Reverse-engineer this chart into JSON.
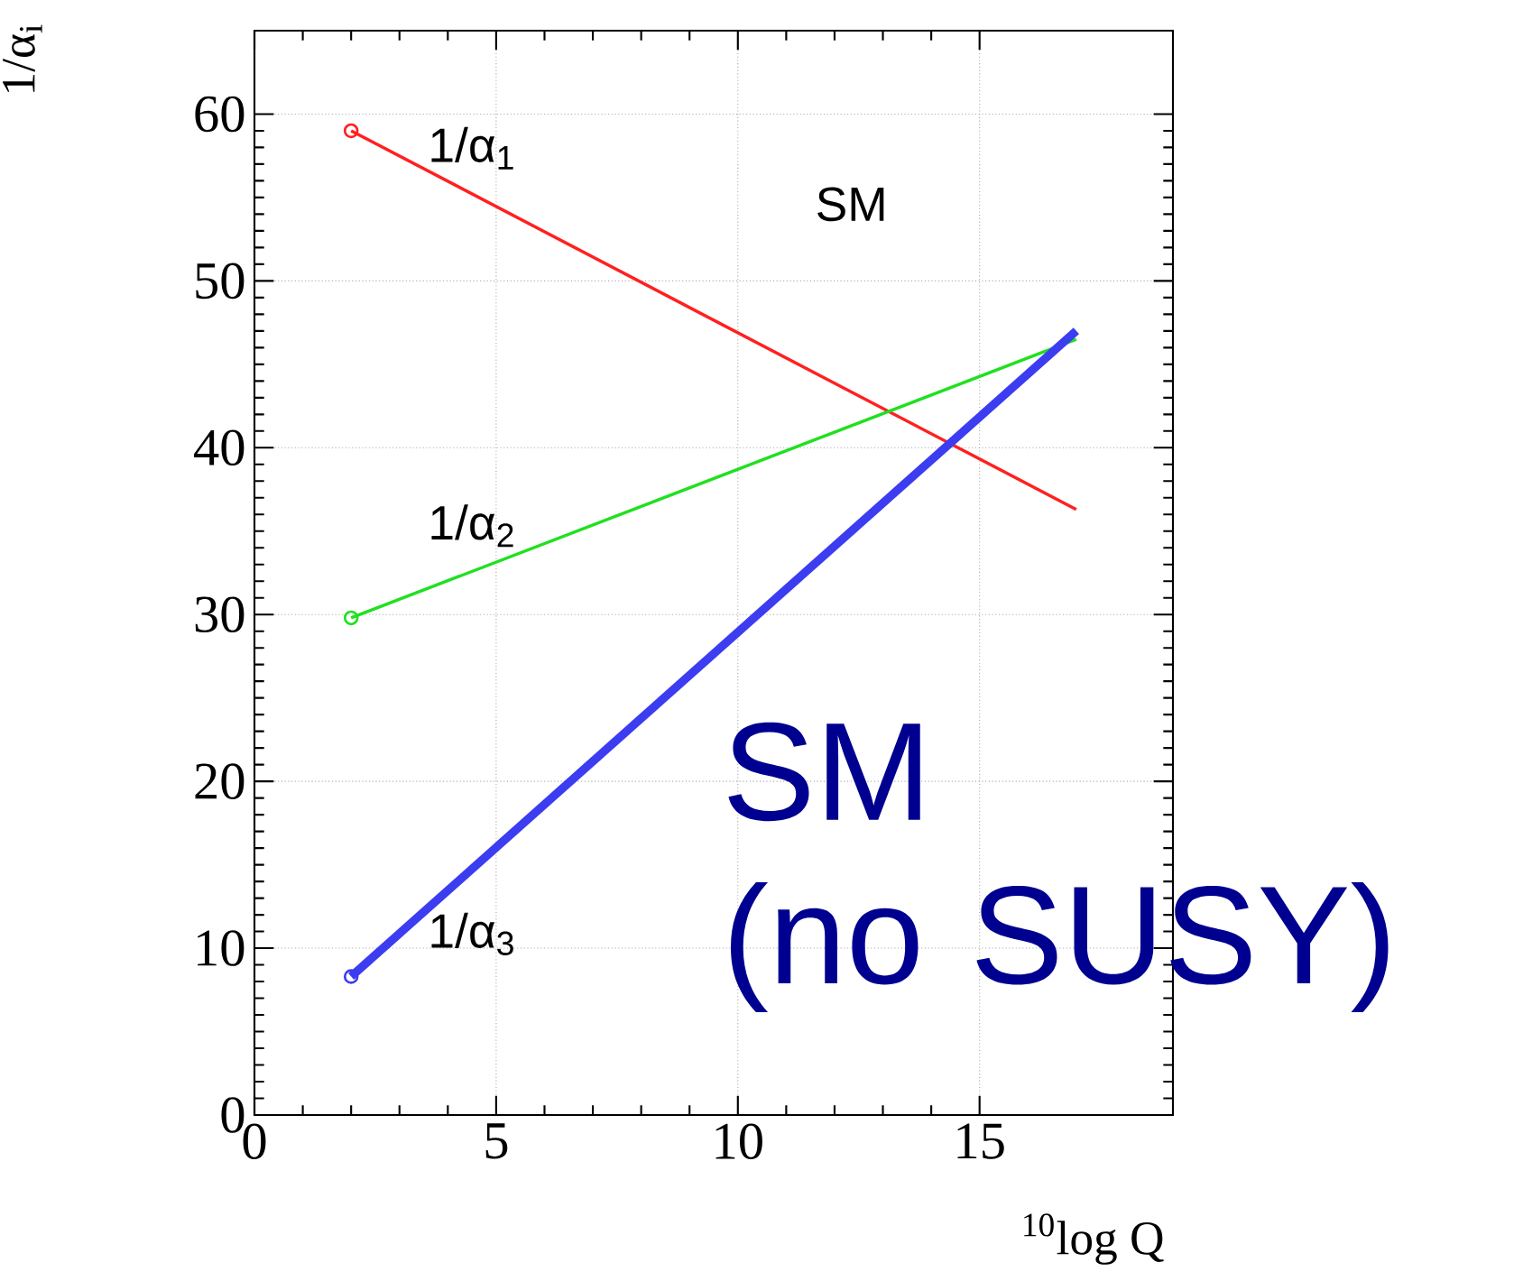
{
  "chart_data": {
    "type": "line",
    "xlabel": "$^{10}$log Q",
    "ylabel": "1/α$_{i}$",
    "annotations": [
      "SM",
      "SM\n(no SUSY)"
    ],
    "x": [
      2,
      17
    ],
    "series": [
      {
        "name": "1/α$_{1}$",
        "color": "#ff2020",
        "values": [
          59,
          36.3
        ]
      },
      {
        "name": "1/α$_{2}$",
        "color": "#20e020",
        "values": [
          29.8,
          46.5
        ]
      },
      {
        "name": "1/α$_{3}$",
        "color": "#3c3cf0",
        "values": [
          8.3,
          47
        ]
      }
    ],
    "xlim": [
      0,
      19
    ],
    "ylim": [
      0,
      65
    ],
    "xticks": [
      0,
      5,
      10,
      15
    ],
    "yticks": [
      0,
      10,
      20,
      30,
      40,
      50,
      60
    ],
    "grid": true,
    "marker": "circle",
    "line_style": "solid",
    "legend": false
  }
}
